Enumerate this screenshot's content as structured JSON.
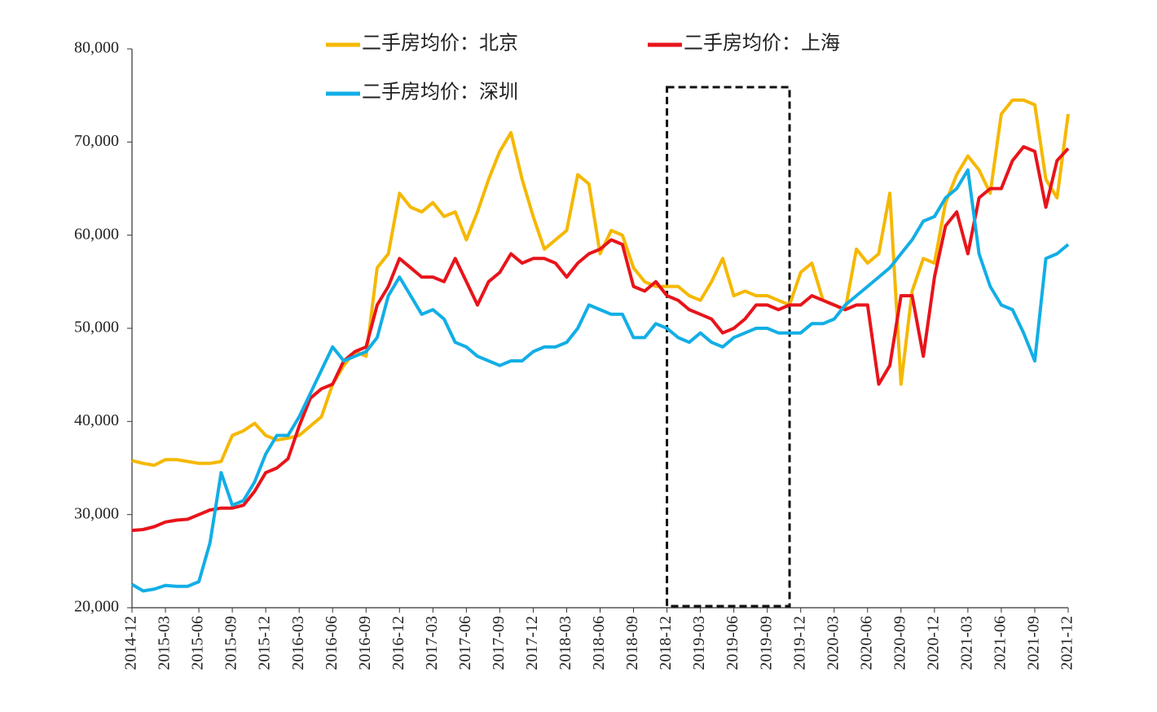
{
  "chart_data": {
    "type": "line",
    "x": [
      "2014-12",
      "2015-01",
      "2015-02",
      "2015-03",
      "2015-04",
      "2015-05",
      "2015-06",
      "2015-07",
      "2015-08",
      "2015-09",
      "2015-10",
      "2015-11",
      "2015-12",
      "2016-01",
      "2016-02",
      "2016-03",
      "2016-04",
      "2016-05",
      "2016-06",
      "2016-07",
      "2016-08",
      "2016-09",
      "2016-10",
      "2016-11",
      "2016-12",
      "2017-01",
      "2017-02",
      "2017-03",
      "2017-04",
      "2017-05",
      "2017-06",
      "2017-07",
      "2017-08",
      "2017-09",
      "2017-10",
      "2017-11",
      "2017-12",
      "2018-01",
      "2018-02",
      "2018-03",
      "2018-04",
      "2018-05",
      "2018-06",
      "2018-07",
      "2018-08",
      "2018-09",
      "2018-10",
      "2018-11",
      "2018-12",
      "2019-01",
      "2019-02",
      "2019-03",
      "2019-04",
      "2019-05",
      "2019-06",
      "2019-07",
      "2019-08",
      "2019-09",
      "2019-10",
      "2019-11",
      "2019-12",
      "2020-01",
      "2020-02",
      "2020-03",
      "2020-04",
      "2020-05",
      "2020-06",
      "2020-07",
      "2020-08",
      "2020-09",
      "2020-10",
      "2020-11",
      "2020-12",
      "2021-01",
      "2021-02",
      "2021-03",
      "2021-04",
      "2021-05",
      "2021-06",
      "2021-07",
      "2021-08",
      "2021-09",
      "2021-10",
      "2021-11",
      "2021-12"
    ],
    "series": [
      {
        "name": "二手房均价：北京",
        "color": "#f5b800",
        "values": [
          35800,
          35500,
          35300,
          35900,
          35900,
          35700,
          35500,
          35500,
          35700,
          38500,
          39000,
          39800,
          38500,
          38000,
          38200,
          38500,
          39500,
          40500,
          44000,
          46000,
          47500,
          47000,
          56500,
          58000,
          64500,
          63000,
          62500,
          63500,
          62000,
          62500,
          59500,
          62500,
          66000,
          69000,
          71000,
          66000,
          62000,
          58500,
          59500,
          60500,
          66500,
          65500,
          58000,
          60500,
          60000,
          56500,
          55000,
          54500,
          54500,
          54500,
          53500,
          53000,
          55000,
          57500,
          53500,
          54000,
          53500,
          53500,
          53000,
          52500,
          56000,
          57000,
          53000,
          52500,
          52000,
          58500,
          57000,
          58000,
          64500,
          44000,
          54000,
          57500,
          57000,
          63500,
          66500,
          68500,
          67000,
          64500,
          73000,
          74500,
          74500,
          74000,
          66000,
          64000,
          73000
        ]
      },
      {
        "name": "二手房均价：上海",
        "color": "#e8141b",
        "values": [
          28300,
          28400,
          28700,
          29200,
          29400,
          29500,
          30000,
          30500,
          30700,
          30700,
          31000,
          32500,
          34500,
          35000,
          36000,
          39500,
          42500,
          43500,
          44000,
          46500,
          47500,
          48000,
          52500,
          54500,
          57500,
          56500,
          55500,
          55500,
          55000,
          57500,
          55000,
          52500,
          55000,
          56000,
          58000,
          57000,
          57500,
          57500,
          57000,
          55500,
          57000,
          58000,
          58500,
          59500,
          59000,
          54500,
          54000,
          55000,
          53500,
          53000,
          52000,
          51500,
          51000,
          49500,
          50000,
          51000,
          52500,
          52500,
          52000,
          52500,
          52500,
          53500,
          53000,
          52500,
          52000,
          52500,
          52500,
          44000,
          46000,
          53500,
          53500,
          47000,
          55500,
          61000,
          62500,
          58000,
          64000,
          65000,
          65000,
          68000,
          69500,
          69000,
          63000,
          68000,
          69300
        ]
      },
      {
        "name": "二手房均价：深圳",
        "color": "#12aee6",
        "values": [
          22500,
          21800,
          22000,
          22400,
          22300,
          22300,
          22800,
          27000,
          34500,
          31000,
          31500,
          33500,
          36500,
          38500,
          38500,
          40500,
          43000,
          45500,
          48000,
          46500,
          47000,
          47500,
          49000,
          53500,
          55500,
          53500,
          51500,
          52000,
          51000,
          48500,
          48000,
          47000,
          46500,
          46000,
          46500,
          46500,
          47500,
          48000,
          48000,
          48500,
          50000,
          52500,
          52000,
          51500,
          51500,
          49000,
          49000,
          50500,
          50000,
          49000,
          48500,
          49500,
          48500,
          48000,
          49000,
          49500,
          50000,
          50000,
          49500,
          49500,
          49500,
          50500,
          50500,
          51000,
          52500,
          53500,
          54500,
          55500,
          56500,
          58000,
          59500,
          61500,
          62000,
          64000,
          65000,
          67000,
          58000,
          54500,
          52500,
          52000,
          49500,
          46500,
          57500,
          58000,
          59000
        ]
      }
    ],
    "xlim": [
      "2014-12",
      "2021-12"
    ],
    "xticks": [
      "2014-12",
      "2015-03",
      "2015-06",
      "2015-09",
      "2015-12",
      "2016-03",
      "2016-06",
      "2016-09",
      "2016-12",
      "2017-03",
      "2017-06",
      "2017-09",
      "2017-12",
      "2018-03",
      "2018-06",
      "2018-09",
      "2018-12",
      "2019-03",
      "2019-06",
      "2019-09",
      "2019-12",
      "2020-03",
      "2020-06",
      "2020-09",
      "2020-12",
      "2021-03",
      "2021-06",
      "2021-09",
      "2021-12"
    ],
    "ylim": [
      20000,
      80000
    ],
    "yticks": [
      {
        "value": 20000,
        "label": "20,000"
      },
      {
        "value": 30000,
        "label": "30,000"
      },
      {
        "value": 40000,
        "label": "40,000"
      },
      {
        "value": 50000,
        "label": "50,000"
      },
      {
        "value": 60000,
        "label": "60,000"
      },
      {
        "value": 70000,
        "label": "70,000"
      },
      {
        "value": 80000,
        "label": "80,000"
      }
    ],
    "highlight_range": [
      "2018-12",
      "2019-11"
    ],
    "legend": "top",
    "grid": false
  }
}
